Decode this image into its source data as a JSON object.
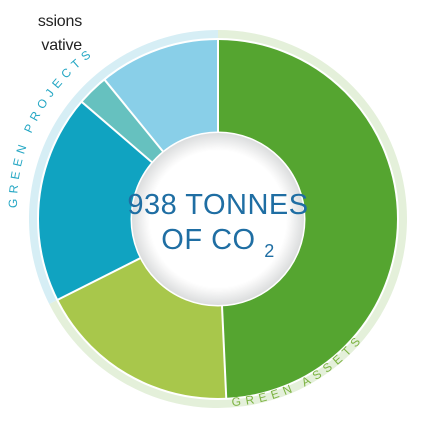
{
  "top_note": {
    "line1": "ssions",
    "line2": "vative"
  },
  "center": {
    "line1": "938 TONNES",
    "line2_main": "OF CO",
    "line2_sub": "2"
  },
  "outer_rings": {
    "projects_label": "GREEN PROJECTS",
    "assets_label": "GREEN ASSETS"
  },
  "chart_data": {
    "type": "pie",
    "values": [
      47.1,
      17.5,
      17.9,
      2.7,
      10.4
    ],
    "colors": [
      "#55a530",
      "#a8c74b",
      "#10a3c1",
      "#66c1bf",
      "#89cfe8"
    ],
    "groups": [
      {
        "label": "GREEN ASSETS",
        "segments": [
          0,
          1
        ],
        "color": "#e4f0da"
      },
      {
        "label": "GREEN PROJECTS",
        "segments": [
          2,
          3,
          4
        ],
        "color": "#d6eef5"
      }
    ]
  }
}
